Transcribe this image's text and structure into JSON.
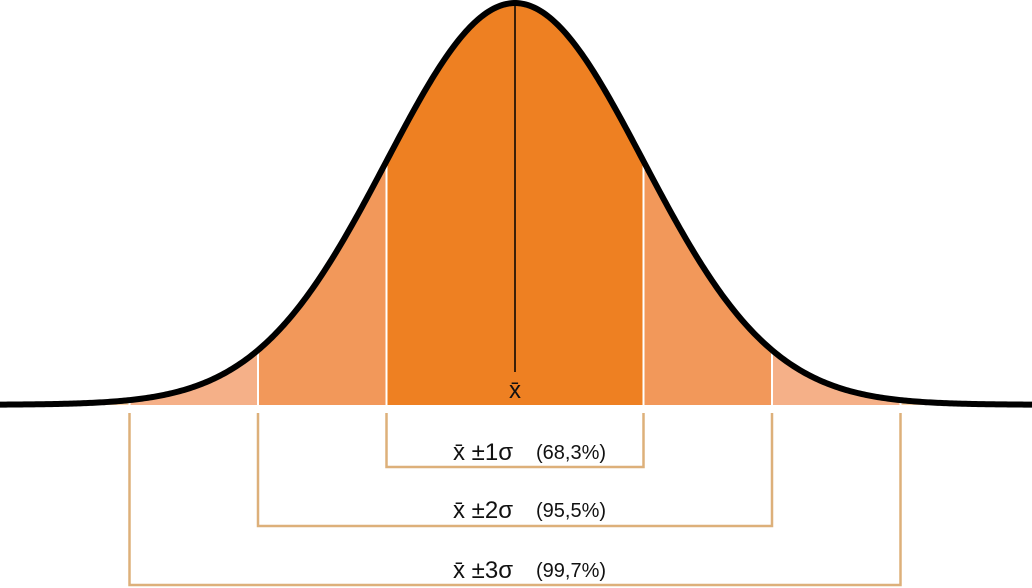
{
  "diagram": {
    "mean_symbol": "x̄",
    "intervals": [
      {
        "k": 1,
        "label": "x̄ ±1σ",
        "percent": "(68,3%)"
      },
      {
        "k": 2,
        "label": "x̄ ±2σ",
        "percent": "(95,5%)"
      },
      {
        "k": 3,
        "label": "x̄ ±3σ",
        "percent": "(99,7%)"
      }
    ],
    "colors": {
      "band1": "#EE8022",
      "band2": "#F2985A",
      "band3": "#F5B088",
      "tail": "#F8CDA0",
      "curve": "#000000",
      "bracket": "#DDB07A"
    }
  }
}
